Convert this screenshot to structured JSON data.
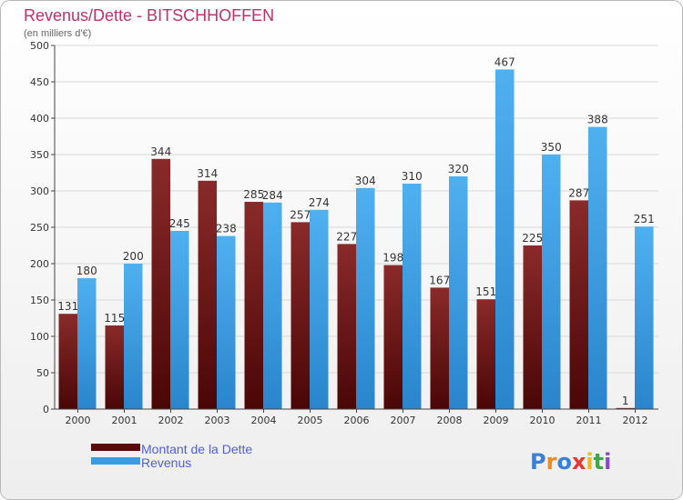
{
  "chart_data": {
    "type": "bar",
    "title": "Revenus/Dette - BITSCHHOFFEN",
    "subtitle": "(en milliers d'€)",
    "categories": [
      "2000",
      "2001",
      "2002",
      "2003",
      "2004",
      "2005",
      "2006",
      "2007",
      "2008",
      "2009",
      "2010",
      "2011",
      "2012"
    ],
    "series": [
      {
        "name": "Montant de la Dette",
        "values": [
          131,
          115,
          344,
          314,
          285,
          257,
          227,
          198,
          167,
          151,
          225,
          287,
          1
        ]
      },
      {
        "name": "Revenus",
        "values": [
          180,
          200,
          245,
          238,
          284,
          274,
          304,
          310,
          320,
          467,
          350,
          388,
          251
        ]
      }
    ],
    "ylim": [
      0,
      500
    ],
    "yticks": [
      0,
      50,
      100,
      150,
      200,
      250,
      300,
      350,
      400,
      450,
      500
    ],
    "grid": true,
    "legend": "bottom-left",
    "colors": {
      "dette": "#7a1e1e",
      "revenus": "#3a9be0",
      "title": "#c0306a",
      "legend_text": "#4f5fe0"
    }
  },
  "logo": {
    "text": "Proxiti"
  }
}
